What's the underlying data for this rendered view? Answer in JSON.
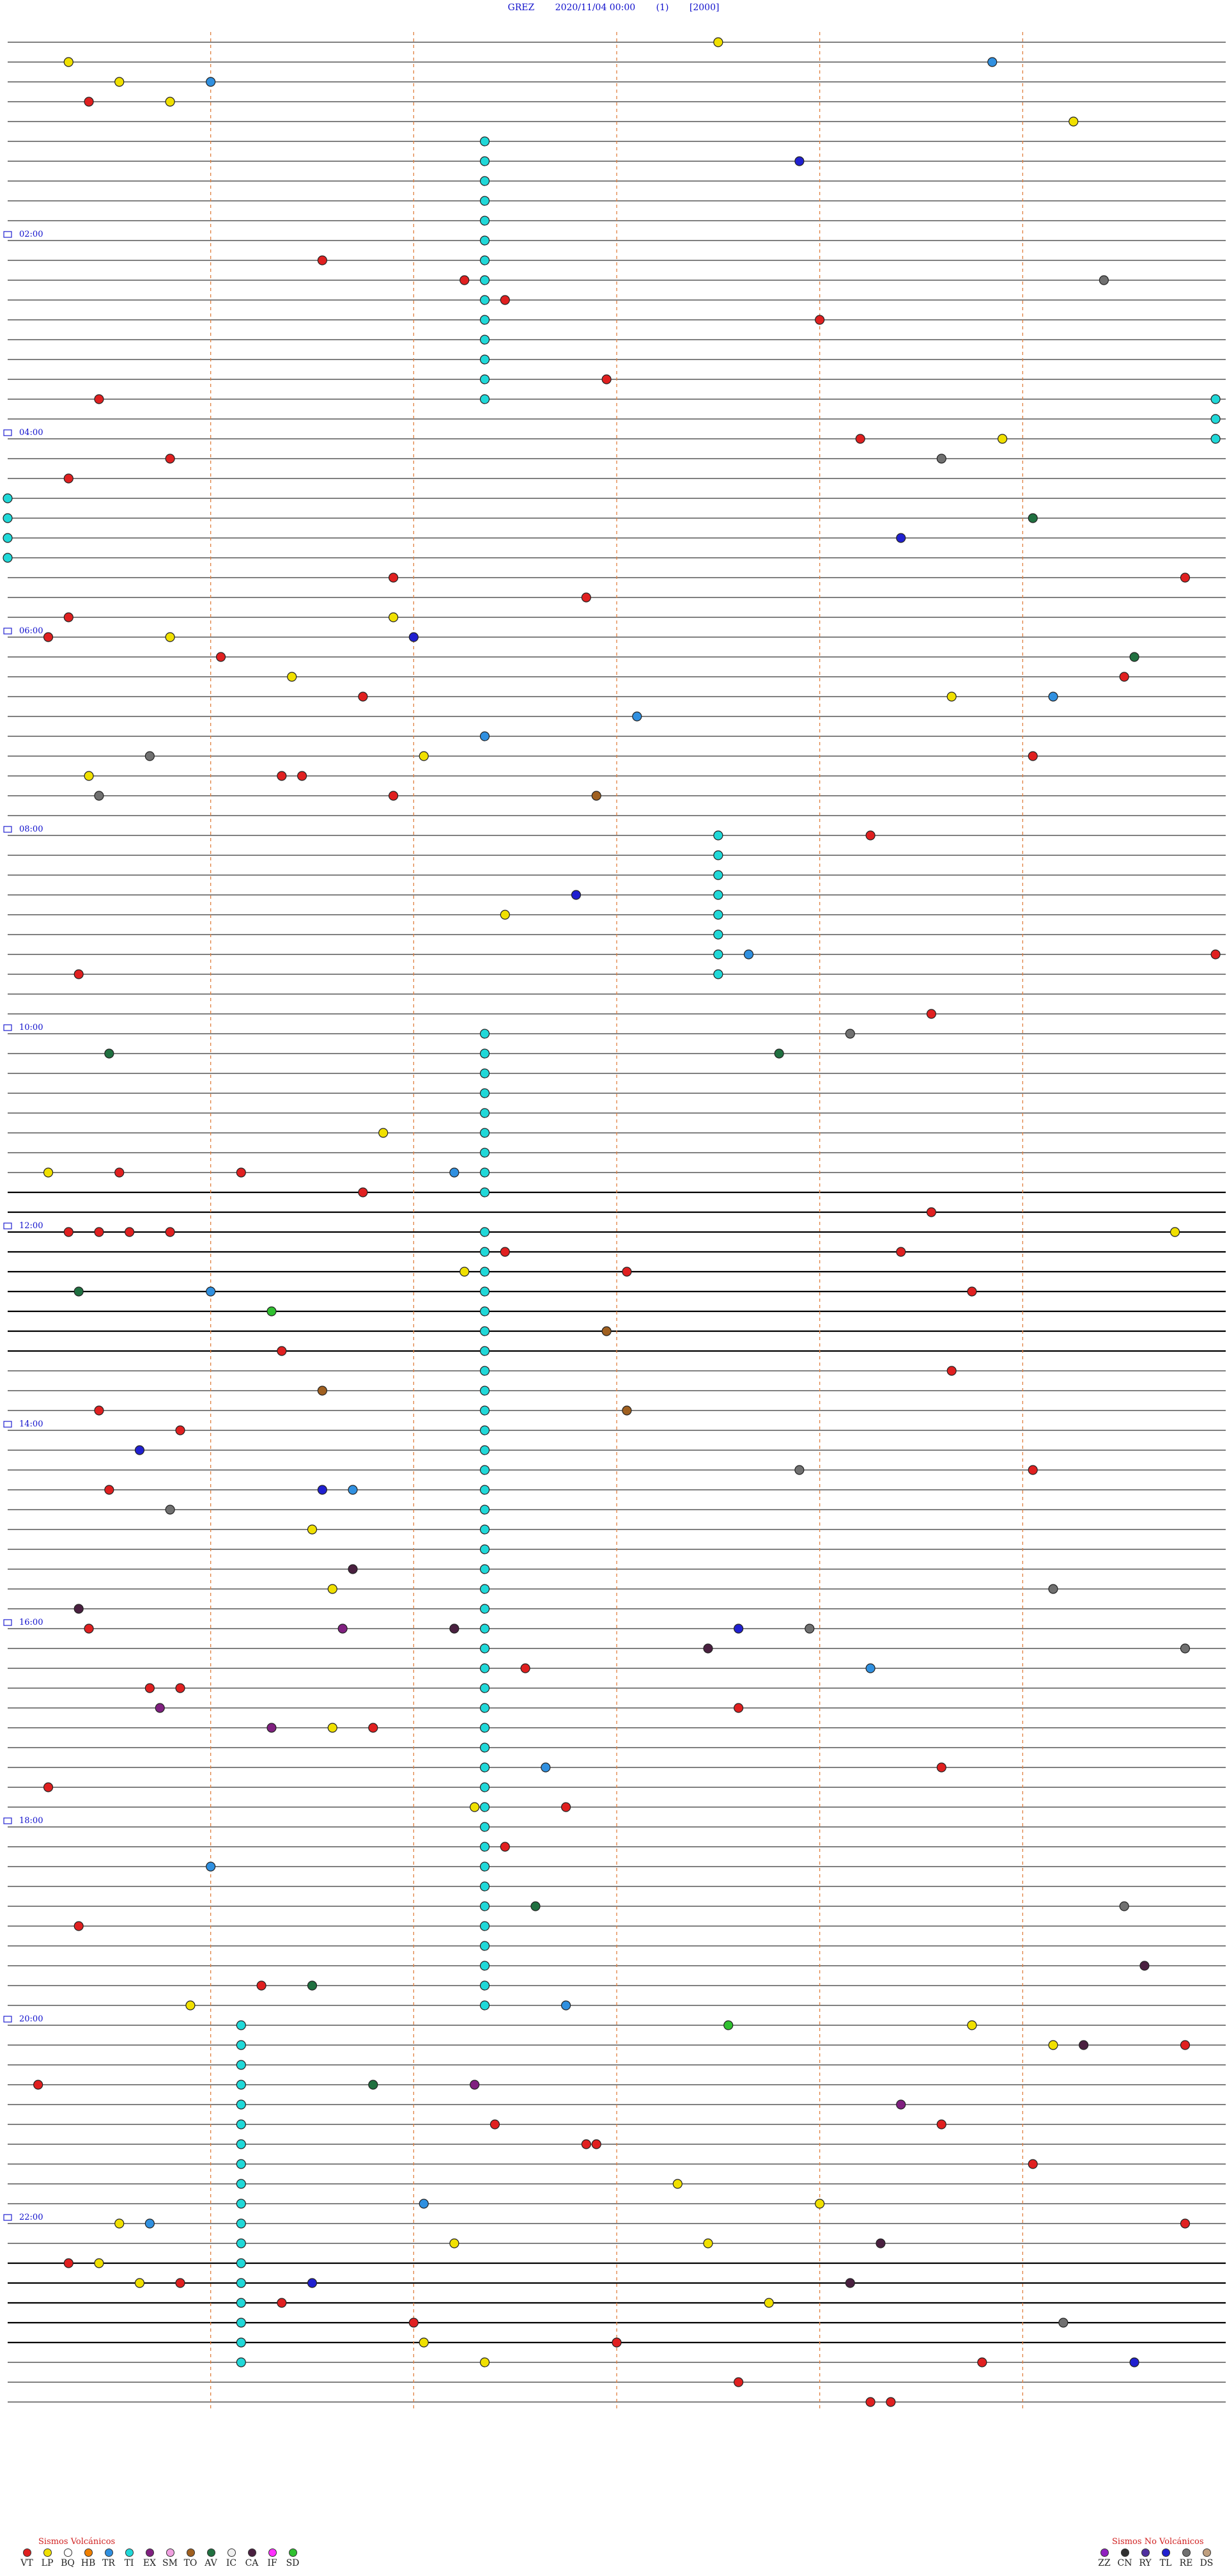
{
  "header": {
    "station": "GREZ",
    "datetime": "2020/11/04 00:00",
    "page": "(1)",
    "scale": "[2000]"
  },
  "hour_labels": [
    "02:00",
    "04:00",
    "06:00",
    "08:00",
    "10:00",
    "12:00",
    "14:00",
    "16:00",
    "18:00",
    "20:00",
    "22:00"
  ],
  "legend": {
    "volcanic_title": "Sismos Volcánicos",
    "volcanic": [
      {
        "code": "VT",
        "color": "#e02020"
      },
      {
        "code": "LP",
        "color": "#f0e000"
      },
      {
        "code": "BQ",
        "color": "#ffffff"
      },
      {
        "code": "HB",
        "color": "#f08000"
      },
      {
        "code": "TR",
        "color": "#3090e0"
      },
      {
        "code": "TI",
        "color": "#20d8d8"
      },
      {
        "code": "EX",
        "color": "#802080"
      },
      {
        "code": "SM",
        "color": "#f0a0e0"
      },
      {
        "code": "TO",
        "color": "#a06020"
      },
      {
        "code": "AV",
        "color": "#207040"
      },
      {
        "code": "IC",
        "color": "#f0f0f0"
      },
      {
        "code": "CA",
        "color": "#4a2040"
      },
      {
        "code": "IF",
        "color": "#ff30ff"
      },
      {
        "code": "SD",
        "color": "#30c030"
      }
    ],
    "non_volcanic_title": "Sismos No Volcánicos",
    "non_volcanic": [
      {
        "code": "ZZ",
        "color": "#9020c0"
      },
      {
        "code": "CN",
        "color": "#303030"
      },
      {
        "code": "RY",
        "color": "#5030a0"
      },
      {
        "code": "TL",
        "color": "#2020d0"
      },
      {
        "code": "RE",
        "color": "#707070"
      },
      {
        "code": "DS",
        "color": "#c0a080"
      }
    ]
  },
  "chart_data": {
    "type": "scatter",
    "title": "GREZ 2020/11/04 00:00 (1) [2000]",
    "rows_total": 120,
    "row_minutes": 12,
    "x_range_min": [
      0,
      12
    ],
    "grid": true,
    "series": [
      {
        "name": "VT",
        "color": "#e02020",
        "points": [
          [
            3,
            0.8
          ],
          [
            11,
            3.1
          ],
          [
            12,
            4.5
          ],
          [
            13,
            4.9
          ],
          [
            14,
            8.0
          ],
          [
            17,
            5.9
          ],
          [
            18,
            0.9
          ],
          [
            20,
            8.4
          ],
          [
            21,
            1.6
          ],
          [
            22,
            0.6
          ],
          [
            27,
            11.6
          ],
          [
            27,
            3.8
          ],
          [
            28,
            5.7
          ],
          [
            29,
            0.6
          ],
          [
            30,
            0.4
          ],
          [
            31,
            2.1
          ],
          [
            32,
            11.0
          ],
          [
            33,
            3.5
          ],
          [
            36,
            10.1
          ],
          [
            37,
            2.7
          ],
          [
            37,
            2.9
          ],
          [
            38,
            3.8
          ],
          [
            40,
            8.5
          ],
          [
            46,
            11.9
          ],
          [
            47,
            0.7
          ],
          [
            49,
            9.1
          ],
          [
            57,
            1.1
          ],
          [
            57,
            2.3
          ],
          [
            58,
            3.5
          ],
          [
            59,
            9.1
          ],
          [
            60,
            0.6
          ],
          [
            60,
            0.9
          ],
          [
            60,
            1.2
          ],
          [
            60,
            1.6
          ],
          [
            61,
            4.9
          ],
          [
            61,
            8.8
          ],
          [
            62,
            6.1
          ],
          [
            63,
            9.5
          ],
          [
            66,
            2.7
          ],
          [
            67,
            9.3
          ],
          [
            69,
            0.9
          ],
          [
            70,
            1.7
          ],
          [
            72,
            10.1
          ],
          [
            73,
            1.0
          ],
          [
            80,
            0.8
          ],
          [
            82,
            5.1
          ],
          [
            83,
            1.4
          ],
          [
            83,
            1.7
          ],
          [
            84,
            7.2
          ],
          [
            85,
            3.6
          ],
          [
            87,
            9.2
          ],
          [
            88,
            0.4
          ],
          [
            89,
            5.5
          ],
          [
            91,
            4.9
          ],
          [
            95,
            0.7
          ],
          [
            98,
            2.5
          ],
          [
            101,
            11.6
          ],
          [
            103,
            0.3
          ],
          [
            105,
            9.2
          ],
          [
            105,
            4.8
          ],
          [
            106,
            5.7
          ],
          [
            106,
            5.8
          ],
          [
            107,
            10.1
          ],
          [
            110,
            11.6
          ],
          [
            112,
            0.6
          ],
          [
            113,
            1.7
          ],
          [
            114,
            2.7
          ],
          [
            115,
            4.0
          ],
          [
            116,
            6.0
          ],
          [
            117,
            9.6
          ],
          [
            118,
            7.2
          ],
          [
            119,
            8.5
          ],
          [
            119,
            8.7
          ]
        ]
      },
      {
        "name": "LP",
        "color": "#f0e000",
        "points": [
          [
            0,
            7.0
          ],
          [
            1,
            0.6
          ],
          [
            2,
            1.1
          ],
          [
            3,
            1.6
          ],
          [
            4,
            10.5
          ],
          [
            20,
            9.8
          ],
          [
            29,
            3.8
          ],
          [
            30,
            1.6
          ],
          [
            32,
            2.8
          ],
          [
            33,
            9.3
          ],
          [
            36,
            4.1
          ],
          [
            37,
            0.8
          ],
          [
            44,
            4.9
          ],
          [
            55,
            3.7
          ],
          [
            57,
            0.4
          ],
          [
            60,
            11.5
          ],
          [
            62,
            4.5
          ],
          [
            75,
            3.0
          ],
          [
            78,
            3.2
          ],
          [
            85,
            3.2
          ],
          [
            89,
            4.6
          ],
          [
            99,
            1.8
          ],
          [
            100,
            9.5
          ],
          [
            101,
            10.3
          ],
          [
            108,
            6.6
          ],
          [
            109,
            8.0
          ],
          [
            110,
            1.1
          ],
          [
            111,
            4.4
          ],
          [
            111,
            6.9
          ],
          [
            112,
            0.9
          ],
          [
            113,
            1.3
          ],
          [
            114,
            7.5
          ],
          [
            116,
            4.1
          ],
          [
            117,
            4.7
          ]
        ]
      },
      {
        "name": "TR",
        "color": "#3090e0",
        "points": [
          [
            1,
            9.7
          ],
          [
            2,
            2.0
          ],
          [
            33,
            10.3
          ],
          [
            34,
            6.2
          ],
          [
            35,
            4.7
          ],
          [
            46,
            7.3
          ],
          [
            57,
            4.4
          ],
          [
            63,
            2.0
          ],
          [
            73,
            3.4
          ],
          [
            82,
            8.5
          ],
          [
            87,
            5.3
          ],
          [
            92,
            2.0
          ],
          [
            99,
            5.5
          ],
          [
            109,
            4.1
          ],
          [
            110,
            1.4
          ]
        ]
      },
      {
        "name": "TI",
        "color": "#20d8d8",
        "points": [
          [
            5,
            4.7
          ],
          [
            6,
            4.7
          ],
          [
            7,
            4.7
          ],
          [
            8,
            4.7
          ],
          [
            9,
            4.7
          ],
          [
            10,
            4.7
          ],
          [
            11,
            4.7
          ],
          [
            12,
            4.7
          ],
          [
            13,
            4.7
          ],
          [
            14,
            4.7
          ],
          [
            15,
            4.7
          ],
          [
            16,
            4.7
          ],
          [
            17,
            4.7
          ],
          [
            18,
            4.7
          ],
          [
            40,
            7.0
          ],
          [
            41,
            7.0
          ],
          [
            42,
            7.0
          ],
          [
            43,
            7.0
          ],
          [
            44,
            7.0
          ],
          [
            45,
            7.0
          ],
          [
            46,
            7.0
          ],
          [
            47,
            7.0
          ],
          [
            50,
            4.7
          ],
          [
            51,
            4.7
          ],
          [
            52,
            4.7
          ],
          [
            53,
            4.7
          ],
          [
            54,
            4.7
          ],
          [
            55,
            4.7
          ],
          [
            56,
            4.7
          ],
          [
            57,
            4.7
          ],
          [
            58,
            4.7
          ],
          [
            60,
            4.7
          ],
          [
            61,
            4.7
          ],
          [
            62,
            4.7
          ],
          [
            63,
            4.7
          ],
          [
            64,
            4.7
          ],
          [
            65,
            4.7
          ],
          [
            66,
            4.7
          ],
          [
            67,
            4.7
          ],
          [
            68,
            4.7
          ],
          [
            69,
            4.7
          ],
          [
            70,
            4.7
          ],
          [
            71,
            4.7
          ],
          [
            72,
            4.7
          ],
          [
            73,
            4.7
          ],
          [
            74,
            4.7
          ],
          [
            75,
            4.7
          ],
          [
            76,
            4.7
          ],
          [
            77,
            4.7
          ],
          [
            78,
            4.7
          ],
          [
            79,
            4.7
          ],
          [
            80,
            4.7
          ],
          [
            81,
            4.7
          ],
          [
            82,
            4.7
          ],
          [
            83,
            4.7
          ],
          [
            84,
            4.7
          ],
          [
            85,
            4.7
          ],
          [
            86,
            4.7
          ],
          [
            87,
            4.7
          ],
          [
            88,
            4.7
          ],
          [
            89,
            4.7
          ],
          [
            90,
            4.7
          ],
          [
            91,
            4.7
          ],
          [
            92,
            4.7
          ],
          [
            93,
            4.7
          ],
          [
            94,
            4.7
          ],
          [
            95,
            4.7
          ],
          [
            96,
            4.7
          ],
          [
            97,
            4.7
          ],
          [
            98,
            4.7
          ],
          [
            99,
            4.7
          ],
          [
            100,
            2.3
          ],
          [
            101,
            2.3
          ],
          [
            102,
            2.3
          ],
          [
            103,
            2.3
          ],
          [
            104,
            2.3
          ],
          [
            105,
            2.3
          ],
          [
            106,
            2.3
          ],
          [
            107,
            2.3
          ],
          [
            108,
            2.3
          ],
          [
            109,
            2.3
          ],
          [
            110,
            2.3
          ],
          [
            111,
            2.3
          ],
          [
            112,
            2.3
          ],
          [
            113,
            2.3
          ],
          [
            114,
            2.3
          ],
          [
            115,
            2.3
          ],
          [
            116,
            2.3
          ],
          [
            117,
            2.3
          ],
          [
            18,
            11.9
          ],
          [
            19,
            11.9
          ],
          [
            20,
            11.9
          ],
          [
            23,
            0.0
          ],
          [
            24,
            0.0
          ],
          [
            25,
            0.0
          ],
          [
            26,
            0.0
          ]
        ]
      },
      {
        "name": "EX",
        "color": "#802080",
        "points": [
          [
            80,
            3.3
          ],
          [
            84,
            1.5
          ],
          [
            85,
            2.6
          ],
          [
            103,
            4.6
          ],
          [
            104,
            8.8
          ]
        ]
      },
      {
        "name": "TO",
        "color": "#a06020",
        "points": [
          [
            38,
            5.8
          ],
          [
            65,
            5.9
          ],
          [
            68,
            3.1
          ],
          [
            69,
            6.1
          ]
        ]
      },
      {
        "name": "AV",
        "color": "#207040",
        "points": [
          [
            24,
            10.1
          ],
          [
            31,
            11.1
          ],
          [
            51,
            1.0
          ],
          [
            51,
            7.6
          ],
          [
            63,
            0.7
          ],
          [
            94,
            5.2
          ],
          [
            98,
            3.0
          ],
          [
            103,
            3.6
          ]
        ]
      },
      {
        "name": "CA",
        "color": "#4a2040",
        "points": [
          [
            77,
            3.4
          ],
          [
            79,
            0.7
          ],
          [
            80,
            4.4
          ],
          [
            81,
            6.9
          ],
          [
            97,
            11.2
          ],
          [
            101,
            10.6
          ],
          [
            111,
            8.6
          ],
          [
            113,
            8.3
          ]
        ]
      },
      {
        "name": "SD",
        "color": "#30c030",
        "points": [
          [
            64,
            2.6
          ],
          [
            100,
            7.1
          ]
        ]
      },
      {
        "name": "RE",
        "color": "#707070",
        "points": [
          [
            12,
            10.8
          ],
          [
            21,
            9.2
          ],
          [
            36,
            1.4
          ],
          [
            38,
            0.9
          ],
          [
            50,
            8.3
          ],
          [
            72,
            7.8
          ],
          [
            74,
            1.6
          ],
          [
            78,
            10.3
          ],
          [
            80,
            7.9
          ],
          [
            81,
            11.6
          ],
          [
            94,
            11.0
          ],
          [
            115,
            10.4
          ]
        ]
      },
      {
        "name": "TL",
        "color": "#2020d0",
        "points": [
          [
            6,
            7.8
          ],
          [
            30,
            4.0
          ],
          [
            25,
            8.8
          ],
          [
            43,
            5.6
          ],
          [
            71,
            1.3
          ],
          [
            73,
            3.1
          ],
          [
            80,
            7.2
          ],
          [
            113,
            3.0
          ],
          [
            117,
            11.1
          ]
        ]
      }
    ]
  }
}
